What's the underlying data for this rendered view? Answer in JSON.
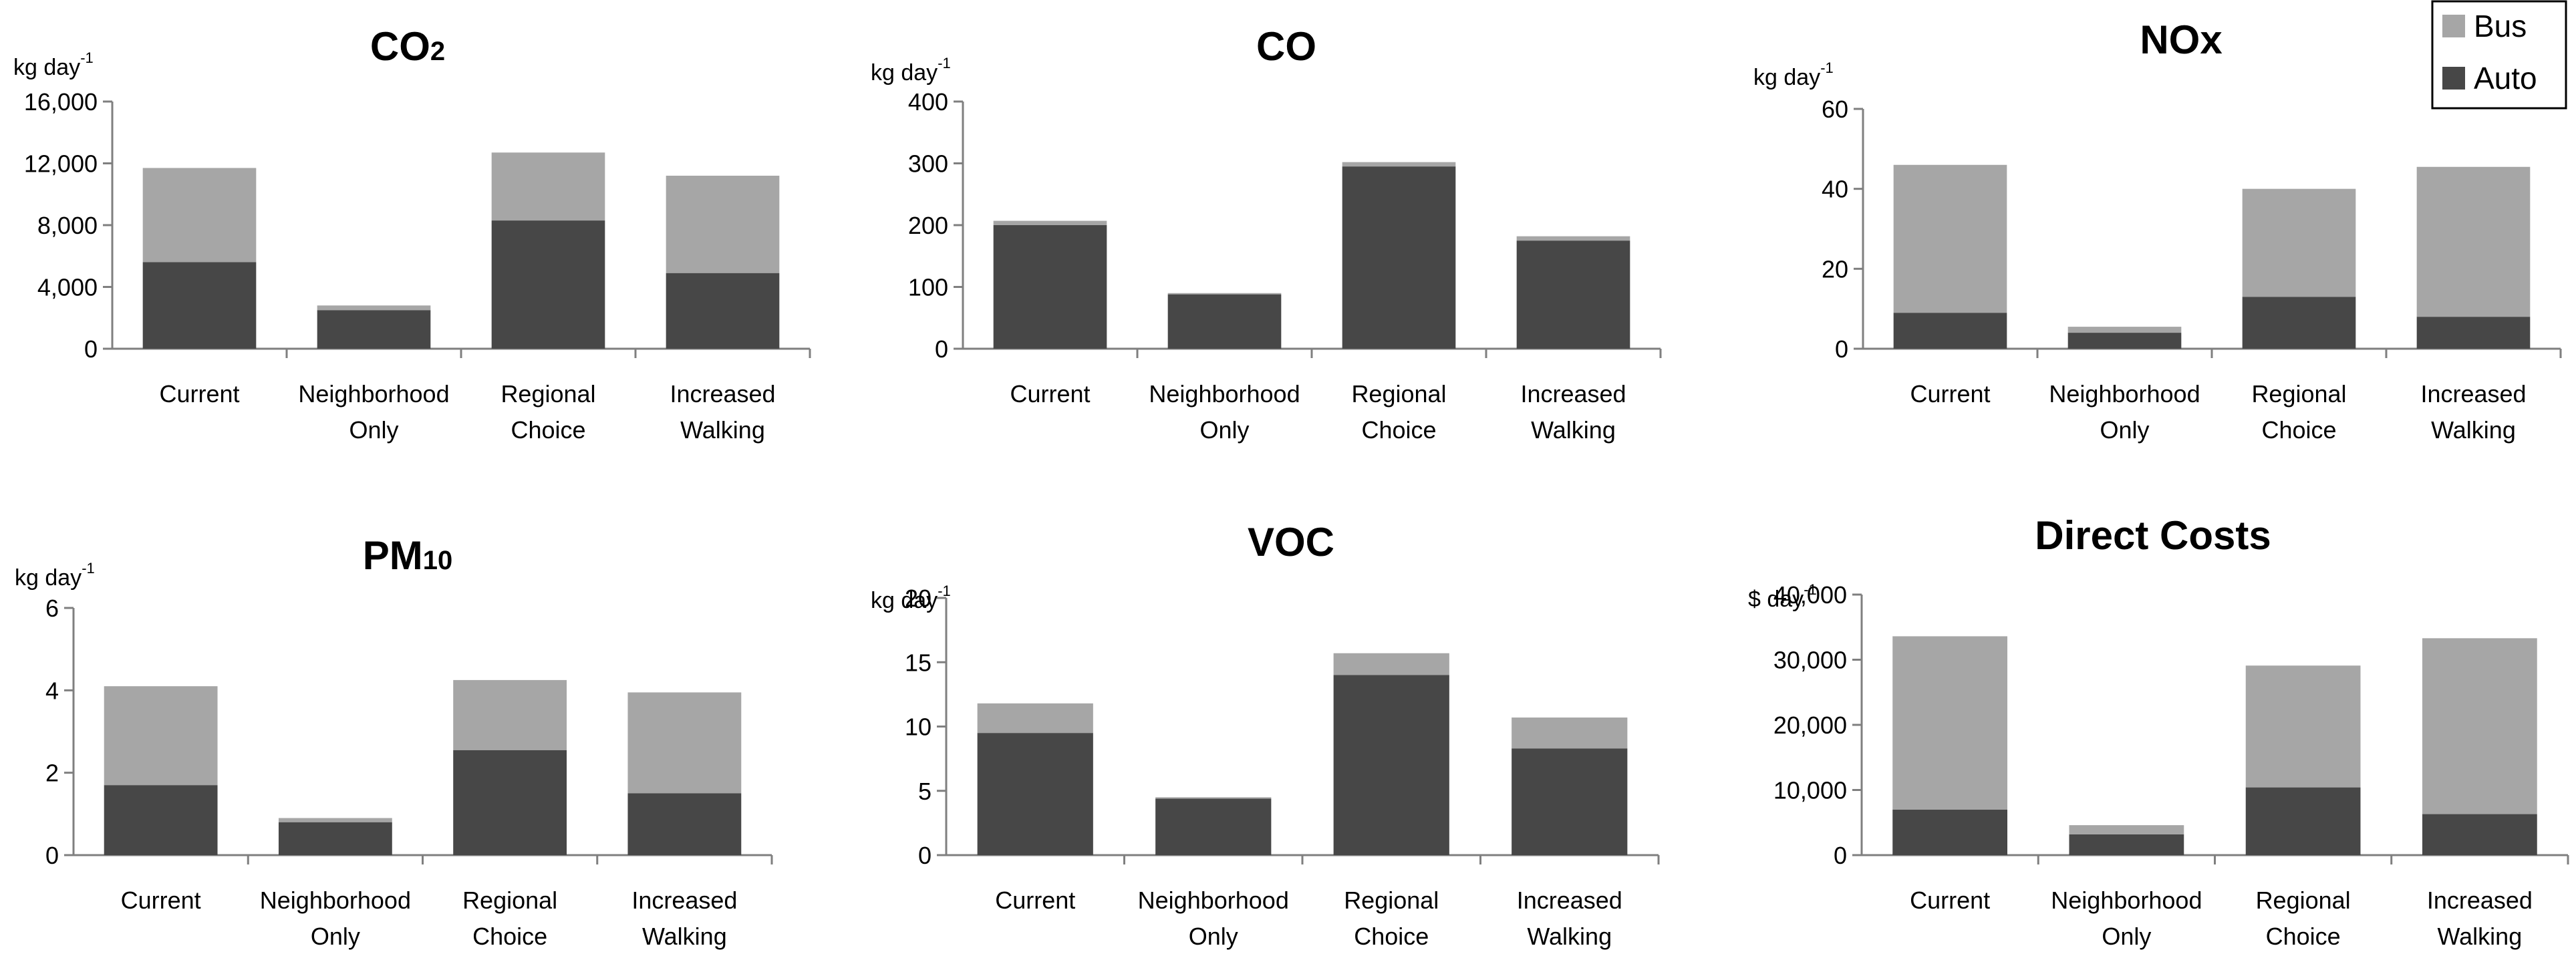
{
  "legend": [
    {
      "label": "Bus",
      "color": "#a6a6a6"
    },
    {
      "label": "Auto",
      "color": "#474747"
    }
  ],
  "colors": {
    "bus": "#a6a6a6",
    "auto": "#474747",
    "axis": "#7f7f7f"
  },
  "chart_data": [
    {
      "type": "bar",
      "stacked": true,
      "title": "CO",
      "title_sub": "2",
      "unit": "kg day",
      "unit_sup": "-1",
      "categories": [
        "Current",
        "Neighborhood Only",
        "Regional Choice",
        "Increased Walking"
      ],
      "category_lines": [
        [
          "Current"
        ],
        [
          "Neighborhood",
          "Only"
        ],
        [
          "Regional",
          "Choice"
        ],
        [
          "Increased",
          "Walking"
        ]
      ],
      "series": [
        {
          "name": "Auto",
          "values": [
            5600,
            2500,
            8300,
            4900
          ]
        },
        {
          "name": "Bus",
          "values": [
            6100,
            300,
            4400,
            6300
          ]
        }
      ],
      "ylim": [
        0,
        16000
      ],
      "yticks": [
        0,
        4000,
        8000,
        12000,
        16000
      ],
      "ytick_labels": [
        "0",
        "4,000",
        "8,000",
        "12,000",
        "16,000"
      ]
    },
    {
      "type": "bar",
      "stacked": true,
      "title": "CO",
      "title_sub": "",
      "unit": "kg day",
      "unit_sup": "-1",
      "categories": [
        "Current",
        "Neighborhood Only",
        "Regional Choice",
        "Increased Walking"
      ],
      "category_lines": [
        [
          "Current"
        ],
        [
          "Neighborhood",
          "Only"
        ],
        [
          "Regional",
          "Choice"
        ],
        [
          "Increased",
          "Walking"
        ]
      ],
      "series": [
        {
          "name": "Auto",
          "values": [
            200,
            88,
            295,
            175
          ]
        },
        {
          "name": "Bus",
          "values": [
            7,
            2,
            7,
            7
          ]
        }
      ],
      "ylim": [
        0,
        400
      ],
      "yticks": [
        0,
        100,
        200,
        300,
        400
      ],
      "ytick_labels": [
        "0",
        "100",
        "200",
        "300",
        "400"
      ]
    },
    {
      "type": "bar",
      "stacked": true,
      "title": "NOx",
      "title_sub": "",
      "unit": "kg day",
      "unit_sup": "-1",
      "categories": [
        "Current",
        "Neighborhood Only",
        "Regional Choice",
        "Increased Walking"
      ],
      "category_lines": [
        [
          "Current"
        ],
        [
          "Neighborhood",
          "Only"
        ],
        [
          "Regional",
          "Choice"
        ],
        [
          "Increased",
          "Walking"
        ]
      ],
      "series": [
        {
          "name": "Auto",
          "values": [
            9,
            4,
            13,
            8
          ]
        },
        {
          "name": "Bus",
          "values": [
            37,
            1.5,
            27,
            37.5
          ]
        }
      ],
      "ylim": [
        0,
        60
      ],
      "yticks": [
        0,
        20,
        40,
        60
      ],
      "ytick_labels": [
        "0",
        "20",
        "40",
        "60"
      ]
    },
    {
      "type": "bar",
      "stacked": true,
      "title": "PM",
      "title_sub": "10",
      "unit": "kg day",
      "unit_sup": "-1",
      "categories": [
        "Current",
        "Neighborhood Only",
        "Regional Choice",
        "Increased Walking"
      ],
      "category_lines": [
        [
          "Current"
        ],
        [
          "Neighborhood",
          "Only"
        ],
        [
          "Regional",
          "Choice"
        ],
        [
          "Increased",
          "Walking"
        ]
      ],
      "series": [
        {
          "name": "Auto",
          "values": [
            1.7,
            0.8,
            2.55,
            1.5
          ]
        },
        {
          "name": "Bus",
          "values": [
            2.4,
            0.1,
            1.7,
            2.45
          ]
        }
      ],
      "ylim": [
        0,
        6
      ],
      "yticks": [
        0,
        2,
        4,
        6
      ],
      "ytick_labels": [
        "0",
        "2",
        "4",
        "6"
      ]
    },
    {
      "type": "bar",
      "stacked": true,
      "title": "VOC",
      "title_sub": "",
      "unit": "kg day",
      "unit_sup": "-1",
      "categories": [
        "Current",
        "Neighborhood Only",
        "Regional Choice",
        "Increased Walking"
      ],
      "category_lines": [
        [
          "Current"
        ],
        [
          "Neighborhood",
          "Only"
        ],
        [
          "Regional",
          "Choice"
        ],
        [
          "Increased",
          "Walking"
        ]
      ],
      "series": [
        {
          "name": "Auto",
          "values": [
            9.5,
            4.4,
            14,
            8.3
          ]
        },
        {
          "name": "Bus",
          "values": [
            2.3,
            0.1,
            1.7,
            2.4
          ]
        }
      ],
      "ylim": [
        0,
        20
      ],
      "yticks": [
        0,
        5,
        10,
        15,
        20
      ],
      "ytick_labels": [
        "0",
        "5",
        "10",
        "15",
        "20"
      ]
    },
    {
      "type": "bar",
      "stacked": true,
      "title": "Direct Costs",
      "title_sub": "",
      "unit": "$ day",
      "unit_sup": "-1",
      "categories": [
        "Current",
        "Neighborhood Only",
        "Regional Choice",
        "Increased Walking"
      ],
      "category_lines": [
        [
          "Current"
        ],
        [
          "Neighborhood",
          "Only"
        ],
        [
          "Regional",
          "Choice"
        ],
        [
          "Increased",
          "Walking"
        ]
      ],
      "series": [
        {
          "name": "Auto",
          "values": [
            7000,
            3200,
            10400,
            6300
          ]
        },
        {
          "name": "Bus",
          "values": [
            26600,
            1400,
            18700,
            27000
          ]
        }
      ],
      "ylim": [
        0,
        40000
      ],
      "yticks": [
        0,
        10000,
        20000,
        30000,
        40000
      ],
      "ytick_labels": [
        "0",
        "10,000",
        "20,000",
        "30,000",
        "40,000"
      ]
    }
  ]
}
